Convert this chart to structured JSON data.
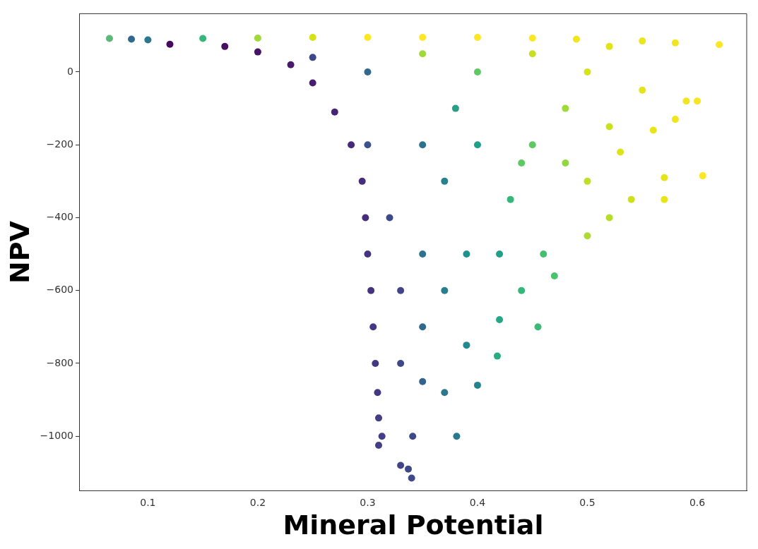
{
  "chart_data": {
    "type": "scatter",
    "xlabel": "Mineral Potential",
    "ylabel": "NPV",
    "marker": "circle",
    "xlim": [
      0.038,
      0.645
    ],
    "ylim": [
      -1150,
      160
    ],
    "xticks": [
      0.1,
      0.2,
      0.3,
      0.4,
      0.5,
      0.6
    ],
    "yticks": [
      0,
      -200,
      -400,
      -600,
      -800,
      -1000
    ],
    "x": [
      0.065,
      0.085,
      0.1,
      0.15,
      0.2,
      0.25,
      0.3,
      0.35,
      0.4,
      0.45,
      0.49,
      0.12,
      0.17,
      0.2,
      0.23,
      0.25,
      0.27,
      0.285,
      0.295,
      0.298,
      0.3,
      0.303,
      0.305,
      0.307,
      0.309,
      0.31,
      0.313,
      0.31,
      0.25,
      0.3,
      0.3,
      0.32,
      0.33,
      0.33,
      0.35,
      0.35,
      0.35,
      0.35,
      0.37,
      0.37,
      0.37,
      0.39,
      0.39,
      0.4,
      0.4,
      0.42,
      0.42,
      0.418,
      0.44,
      0.455,
      0.46,
      0.47,
      0.43,
      0.45,
      0.4,
      0.35,
      0.45,
      0.48,
      0.5,
      0.52,
      0.5,
      0.52,
      0.5,
      0.54,
      0.55,
      0.56,
      0.57,
      0.57,
      0.58,
      0.59,
      0.6,
      0.605,
      0.62,
      0.58,
      0.55,
      0.52,
      0.53,
      0.48,
      0.44,
      0.38,
      0.341,
      0.381,
      0.33,
      0.337,
      0.34
    ],
    "values": [
      92,
      90,
      88,
      92,
      93,
      95,
      95,
      95,
      95,
      93,
      90,
      76,
      70,
      55,
      20,
      -30,
      -110,
      -200,
      -300,
      -400,
      -500,
      -600,
      -700,
      -800,
      -880,
      -950,
      -1000,
      -1025,
      40,
      0,
      -200,
      -400,
      -600,
      -800,
      -200,
      -500,
      -700,
      -850,
      -300,
      -600,
      -880,
      -500,
      -750,
      -860,
      -200,
      -500,
      -680,
      -780,
      -600,
      -700,
      -500,
      -560,
      -350,
      -200,
      0,
      50,
      50,
      -100,
      0,
      -150,
      -300,
      -400,
      -450,
      -350,
      -50,
      -160,
      -290,
      -350,
      80,
      -80,
      -80,
      -285,
      75,
      -130,
      85,
      70,
      -220,
      -250,
      -250,
      -100,
      -1000,
      -1000,
      -1080,
      -1090,
      -1115
    ],
    "colors": [
      "#5cb878",
      "#31688e",
      "#2a788e",
      "#35b779",
      "#a0da39",
      "#d5e21a",
      "#fde725",
      "#fde725",
      "#fde725",
      "#fde725",
      "#f1e51d",
      "#46085c",
      "#470e61",
      "#471365",
      "#481a6c",
      "#481f70",
      "#482475",
      "#482878",
      "#472d7b",
      "#472d7b",
      "#46337f",
      "#46337f",
      "#453882",
      "#453882",
      "#453882",
      "#433e85",
      "#433e85",
      "#433e85",
      "#3e4989",
      "#31688e",
      "#3b528b",
      "#3e4989",
      "#414487",
      "#3e4989",
      "#2c728e",
      "#2c728e",
      "#31688e",
      "#33638d",
      "#26828e",
      "#277f8e",
      "#2a788e",
      "#21918c",
      "#23898e",
      "#25858e",
      "#1fa088",
      "#1fa088",
      "#22a884",
      "#27ad81",
      "#35b779",
      "#3bbb75",
      "#44bf70",
      "#4ac16d",
      "#35b779",
      "#5ec962",
      "#5ec962",
      "#a0da39",
      "#c8e020",
      "#a0da39",
      "#d8e219",
      "#cae11f",
      "#bddf26",
      "#b5de2b",
      "#addc30",
      "#d0e11c",
      "#e5e419",
      "#e7e419",
      "#e5e419",
      "#eae51a",
      "#f1e51d",
      "#f1e51d",
      "#f6e620",
      "#fde725",
      "#fde725",
      "#f1e51d",
      "#ece51b",
      "#e2e418",
      "#dde318",
      "#90d743",
      "#5ec962",
      "#2a9e89",
      "#3e4989",
      "#2a788e",
      "#414487",
      "#3e4989",
      "#3e4989"
    ]
  }
}
